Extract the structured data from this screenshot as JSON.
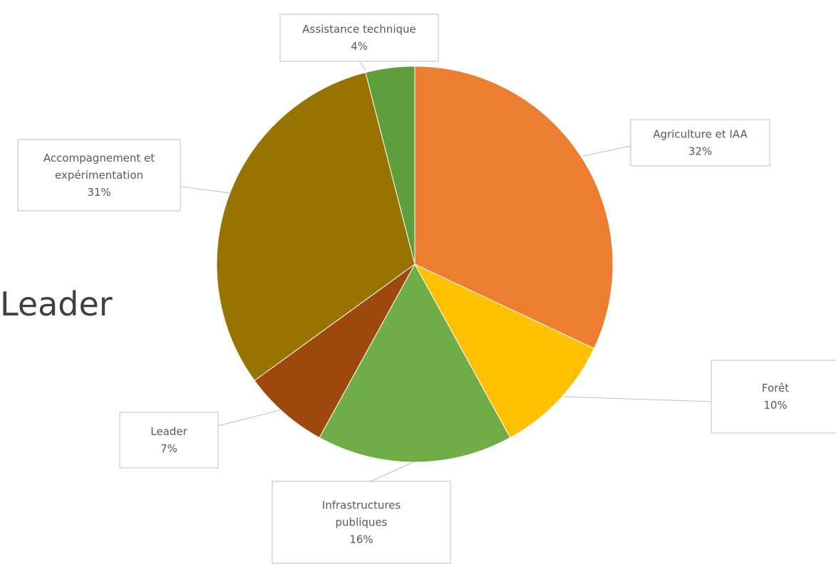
{
  "background_text": "Leader",
  "chart_data": {
    "type": "pie",
    "title": "",
    "start_angle_deg": 0,
    "direction": "clockwise",
    "slices": [
      {
        "label_lines": [
          "Agriculture et IAA"
        ],
        "value_label": "32%",
        "value": 32,
        "color": "#ED7D31"
      },
      {
        "label_lines": [
          "Forêt"
        ],
        "value_label": "10%",
        "value": 10,
        "color": "#FFC000"
      },
      {
        "label_lines": [
          "Infrastructures",
          "publiques"
        ],
        "value_label": "16%",
        "value": 16,
        "color": "#70AD47"
      },
      {
        "label_lines": [
          "Leader"
        ],
        "value_label": "7%",
        "value": 7,
        "color": "#9E480E"
      },
      {
        "label_lines": [
          "Accompagnement et",
          "expérimentation"
        ],
        "value_label": "31%",
        "value": 31,
        "color": "#997300"
      },
      {
        "label_lines": [
          "Assistance technique"
        ],
        "value_label": "4%",
        "value": 4,
        "color": "#5E9E3C"
      }
    ],
    "data_labels": "callouts with leader lines",
    "legend": "none"
  }
}
